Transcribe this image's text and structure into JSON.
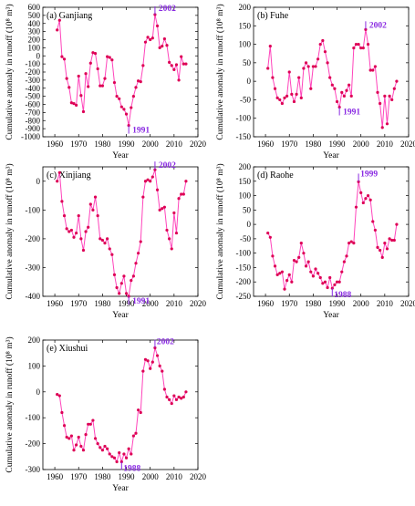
{
  "chart_data": [
    {
      "type": "line",
      "title": "(a) Ganjiang",
      "xlabel": "Year",
      "ylabel": "Cumulative anomaly in runoff (10⁸ m³)",
      "xlim": [
        1955,
        2020
      ],
      "ylim": [
        -1000,
        600
      ],
      "xticks": [
        1960,
        1970,
        1980,
        1990,
        2000,
        2010,
        2020
      ],
      "yticks": [
        -1000,
        -900,
        -800,
        -700,
        -600,
        -500,
        -400,
        -300,
        -200,
        -100,
        0,
        100,
        200,
        300,
        400,
        500,
        600
      ],
      "line_color": "#ff44bb",
      "marker_color": "#dd0055",
      "annotation_color": "#8a2be2",
      "annotations": [
        {
          "label": "2002",
          "x": 2002,
          "y": 510
        },
        {
          "label": "1991",
          "x": 1991,
          "y": -860
        }
      ],
      "x": [
        1961,
        1962,
        1963,
        1964,
        1965,
        1966,
        1967,
        1968,
        1969,
        1970,
        1971,
        1972,
        1973,
        1974,
        1975,
        1976,
        1977,
        1978,
        1979,
        1980,
        1981,
        1982,
        1983,
        1984,
        1985,
        1986,
        1987,
        1988,
        1989,
        1990,
        1991,
        1992,
        1993,
        1994,
        1995,
        1996,
        1997,
        1998,
        1999,
        2000,
        2001,
        2002,
        2003,
        2004,
        2005,
        2006,
        2007,
        2008,
        2009,
        2010,
        2011,
        2012,
        2013,
        2014,
        2015
      ],
      "y": [
        320,
        440,
        -10,
        -40,
        -280,
        -390,
        -580,
        -590,
        -610,
        -250,
        -490,
        -690,
        -220,
        -380,
        -90,
        40,
        30,
        -160,
        -370,
        -370,
        -280,
        -10,
        -20,
        -50,
        -330,
        -500,
        -530,
        -630,
        -660,
        -720,
        -860,
        -640,
        -500,
        -390,
        -310,
        -320,
        -120,
        170,
        230,
        200,
        220,
        510,
        370,
        100,
        120,
        210,
        130,
        -80,
        -120,
        -170,
        -110,
        -300,
        -10,
        -100,
        -100
      ]
    },
    {
      "type": "line",
      "title": "(b) Fuhe",
      "xlabel": "Year",
      "ylabel": "Cumulative anomaly in runoff (10⁸ m³)",
      "xlim": [
        1955,
        2020
      ],
      "ylim": [
        -150,
        200
      ],
      "xticks": [
        1960,
        1970,
        1980,
        1990,
        2000,
        2010,
        2020
      ],
      "yticks": [
        -150,
        -100,
        -50,
        0,
        50,
        100,
        150,
        200
      ],
      "line_color": "#ff44bb",
      "marker_color": "#dd0055",
      "annotation_color": "#8a2be2",
      "annotations": [
        {
          "label": "2002",
          "x": 2002,
          "y": 140
        },
        {
          "label": "1991",
          "x": 1991,
          "y": -70
        }
      ],
      "x": [
        1961,
        1962,
        1963,
        1964,
        1965,
        1966,
        1967,
        1968,
        1969,
        1970,
        1971,
        1972,
        1973,
        1974,
        1975,
        1976,
        1977,
        1978,
        1979,
        1980,
        1981,
        1982,
        1983,
        1984,
        1985,
        1986,
        1987,
        1988,
        1989,
        1990,
        1991,
        1992,
        1993,
        1994,
        1995,
        1996,
        1997,
        1998,
        1999,
        2000,
        2001,
        2002,
        2003,
        2004,
        2005,
        2006,
        2007,
        2008,
        2009,
        2010,
        2011,
        2012,
        2013,
        2014,
        2015
      ],
      "y": [
        35,
        95,
        10,
        -20,
        -45,
        -50,
        -60,
        -45,
        -40,
        25,
        -35,
        -55,
        -35,
        10,
        -45,
        35,
        50,
        40,
        -20,
        40,
        40,
        60,
        100,
        110,
        80,
        50,
        10,
        -10,
        -20,
        -55,
        -70,
        -30,
        -40,
        -25,
        -10,
        -40,
        90,
        100,
        100,
        90,
        90,
        140,
        100,
        30,
        30,
        40,
        -30,
        -60,
        -125,
        -40,
        -115,
        -40,
        -50,
        -20,
        0
      ]
    },
    {
      "type": "line",
      "title": "(c) Xinjiang",
      "xlabel": "Year",
      "ylabel": "Cumulative anomaly in runoff (10⁸ m³)",
      "xlim": [
        1955,
        2020
      ],
      "ylim": [
        -400,
        50
      ],
      "xticks": [
        1960,
        1970,
        1980,
        1990,
        2000,
        2010,
        2020
      ],
      "yticks": [
        -400,
        -300,
        -200,
        -100,
        0
      ],
      "line_color": "#ff44bb",
      "marker_color": "#dd0055",
      "annotation_color": "#8a2be2",
      "annotations": [
        {
          "label": "2002",
          "x": 2002,
          "y": 40
        },
        {
          "label": "1991",
          "x": 1991,
          "y": -400
        }
      ],
      "x": [
        1961,
        1962,
        1963,
        1964,
        1965,
        1966,
        1967,
        1968,
        1969,
        1970,
        1971,
        1972,
        1973,
        1974,
        1975,
        1976,
        1977,
        1978,
        1979,
        1980,
        1981,
        1982,
        1983,
        1984,
        1985,
        1986,
        1987,
        1988,
        1989,
        1990,
        1991,
        1992,
        1993,
        1994,
        1995,
        1996,
        1997,
        1998,
        1999,
        2000,
        2001,
        2002,
        2003,
        2004,
        2005,
        2006,
        2007,
        2008,
        2009,
        2010,
        2011,
        2012,
        2013,
        2014,
        2015
      ],
      "y": [
        0,
        30,
        -70,
        -120,
        -165,
        -175,
        -170,
        -195,
        -180,
        -120,
        -200,
        -240,
        -175,
        -160,
        -80,
        -100,
        -55,
        -120,
        -200,
        -205,
        -215,
        -200,
        -235,
        -255,
        -325,
        -370,
        -390,
        -355,
        -330,
        -390,
        -400,
        -345,
        -330,
        -285,
        -250,
        -210,
        -55,
        0,
        5,
        0,
        15,
        40,
        -30,
        -100,
        -95,
        -90,
        -170,
        -200,
        -235,
        -110,
        -180,
        -60,
        -45,
        -45,
        0
      ]
    },
    {
      "type": "line",
      "title": "(d) Raohe",
      "xlabel": "Year",
      "ylabel": "Cumulative anomaly in runoff (10⁸ m³)",
      "xlim": [
        1955,
        2020
      ],
      "ylim": [
        -250,
        200
      ],
      "xticks": [
        1960,
        1970,
        1980,
        1990,
        2000,
        2010,
        2020
      ],
      "yticks": [
        -250,
        -200,
        -150,
        -100,
        -50,
        0,
        50,
        100,
        150,
        200
      ],
      "line_color": "#ff44bb",
      "marker_color": "#dd0055",
      "annotation_color": "#8a2be2",
      "annotations": [
        {
          "label": "1999",
          "x": 1999,
          "y": 148
        },
        {
          "label": "1988",
          "x": 1988,
          "y": -222
        }
      ],
      "x": [
        1961,
        1962,
        1963,
        1964,
        1965,
        1966,
        1967,
        1968,
        1969,
        1970,
        1971,
        1972,
        1973,
        1974,
        1975,
        1976,
        1977,
        1978,
        1979,
        1980,
        1981,
        1982,
        1983,
        1984,
        1985,
        1986,
        1987,
        1988,
        1989,
        1990,
        1991,
        1992,
        1993,
        1994,
        1995,
        1996,
        1997,
        1998,
        1999,
        2000,
        2001,
        2002,
        2003,
        2004,
        2005,
        2006,
        2007,
        2008,
        2009,
        2010,
        2011,
        2012,
        2013,
        2014,
        2015
      ],
      "y": [
        -30,
        -45,
        -110,
        -145,
        -175,
        -170,
        -165,
        -225,
        -195,
        -175,
        -200,
        -125,
        -130,
        -115,
        -65,
        -100,
        -145,
        -130,
        -165,
        -180,
        -155,
        -170,
        -185,
        -205,
        -200,
        -220,
        -185,
        -222,
        -210,
        -200,
        -200,
        -165,
        -130,
        -110,
        -65,
        -60,
        -65,
        60,
        148,
        110,
        75,
        90,
        100,
        85,
        10,
        -20,
        -80,
        -90,
        -115,
        -65,
        -85,
        -50,
        -55,
        -55,
        0
      ]
    },
    {
      "type": "line",
      "title": "(e) Xiushui",
      "xlabel": "Year",
      "ylabel": "Cumulative anomaly in runoff (10⁸ m³)",
      "xlim": [
        1955,
        2020
      ],
      "ylim": [
        -300,
        200
      ],
      "xticks": [
        1960,
        1970,
        1980,
        1990,
        2000,
        2010,
        2020
      ],
      "yticks": [
        -300,
        -200,
        -100,
        0,
        100,
        200
      ],
      "line_color": "#ff44bb",
      "marker_color": "#dd0055",
      "annotation_color": "#8a2be2",
      "annotations": [
        {
          "label": "2002",
          "x": 2002,
          "y": 170
        },
        {
          "label": "1988",
          "x": 1988,
          "y": -270
        }
      ],
      "x": [
        1961,
        1962,
        1963,
        1964,
        1965,
        1966,
        1967,
        1968,
        1969,
        1970,
        1971,
        1972,
        1973,
        1974,
        1975,
        1976,
        1977,
        1978,
        1979,
        1980,
        1981,
        1982,
        1983,
        1984,
        1985,
        1986,
        1987,
        1988,
        1989,
        1990,
        1991,
        1992,
        1993,
        1994,
        1995,
        1996,
        1997,
        1998,
        1999,
        2000,
        2001,
        2002,
        2003,
        2004,
        2005,
        2006,
        2007,
        2008,
        2009,
        2010,
        2011,
        2012,
        2013,
        2014,
        2015
      ],
      "y": [
        -10,
        -15,
        -80,
        -130,
        -175,
        -180,
        -170,
        -225,
        -205,
        -175,
        -210,
        -225,
        -165,
        -125,
        -125,
        -110,
        -180,
        -200,
        -215,
        -225,
        -210,
        -220,
        -240,
        -250,
        -255,
        -270,
        -235,
        -270,
        -240,
        -255,
        -220,
        -240,
        -170,
        -160,
        -70,
        -80,
        80,
        125,
        120,
        90,
        115,
        170,
        140,
        100,
        80,
        10,
        -20,
        -30,
        -45,
        -15,
        -30,
        -20,
        -25,
        -20,
        0
      ]
    }
  ]
}
